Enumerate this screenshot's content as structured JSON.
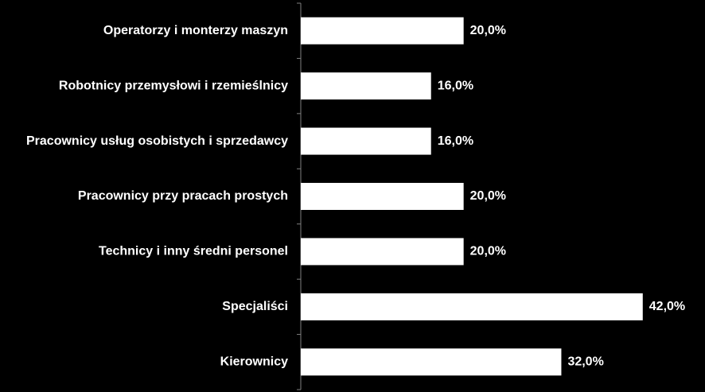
{
  "chart_data": {
    "type": "bar",
    "orientation": "horizontal",
    "categories": [
      "Operatorzy i monterzy maszyn",
      "Robotnicy przemysłowi i rzemieślnicy",
      "Pracownicy usług osobistych i sprzedawcy",
      "Pracownicy przy pracach prostych",
      "Technicy i inny średni personel",
      "Specjaliści",
      "Kierownicy"
    ],
    "values": [
      20.0,
      16.0,
      16.0,
      20.0,
      20.0,
      42.0,
      32.0
    ],
    "value_labels": [
      "20,0%",
      "16,0%",
      "16,0%",
      "20,0%",
      "20,0%",
      "42,0%",
      "32,0%"
    ],
    "unit": "%",
    "xlim": [
      0,
      43
    ],
    "title": "",
    "xlabel": "",
    "ylabel": "",
    "grid": false,
    "legend": "none",
    "colors": {
      "background": "#000000",
      "bar": "#ffffff",
      "text": "#ffffff",
      "axis": "#808080"
    }
  }
}
